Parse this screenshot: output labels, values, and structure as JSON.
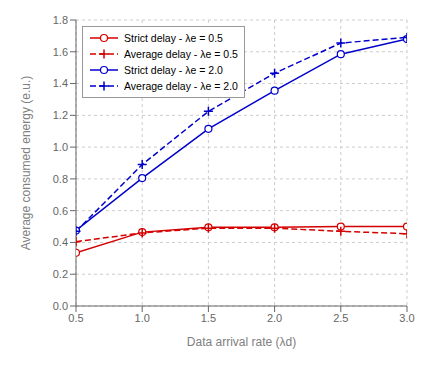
{
  "chart_data": {
    "type": "line",
    "xlabel": "Data arrival rate (λd)",
    "ylabel": "Average consumed energy (e.u.)",
    "x": [
      0.5,
      1.0,
      1.5,
      2.0,
      2.5,
      3.0
    ],
    "series": [
      {
        "name": "Strict delay - λe = 0.5",
        "color": "#d40000",
        "marker": "circle",
        "line_style": "solid",
        "values": [
          0.335,
          0.465,
          0.495,
          0.495,
          0.5,
          0.5
        ]
      },
      {
        "name": "Average delay - λe = 0.5",
        "color": "#d40000",
        "marker": "plus",
        "line_style": "dashed",
        "values": [
          0.405,
          0.46,
          0.49,
          0.49,
          0.47,
          0.455
        ]
      },
      {
        "name": "Strict delay - λe = 2.0",
        "color": "#0000cc",
        "marker": "circle",
        "line_style": "solid",
        "values": [
          0.475,
          0.805,
          1.115,
          1.355,
          1.585,
          1.68
        ]
      },
      {
        "name": "Average delay - λe = 2.0",
        "color": "#0000cc",
        "marker": "plus",
        "line_style": "dashed",
        "values": [
          0.47,
          0.89,
          1.225,
          1.465,
          1.655,
          1.69
        ]
      }
    ],
    "xlim": [
      0.5,
      3.0
    ],
    "ylim": [
      0,
      1.8
    ],
    "xticks": [
      0.5,
      {
        "value": 1,
        "label": "1.0"
      },
      1.5,
      {
        "value": 2,
        "label": "2.0"
      },
      2.5,
      {
        "value": 3,
        "label": "3.0"
      }
    ],
    "yticks": [
      {
        "value": 0,
        "label": "0.0"
      },
      0.2,
      0.4,
      0.6,
      0.8,
      {
        "value": 1,
        "label": "1.0"
      },
      1.2,
      1.4,
      1.6,
      1.8
    ],
    "grid": true,
    "legend": "upper left"
  }
}
